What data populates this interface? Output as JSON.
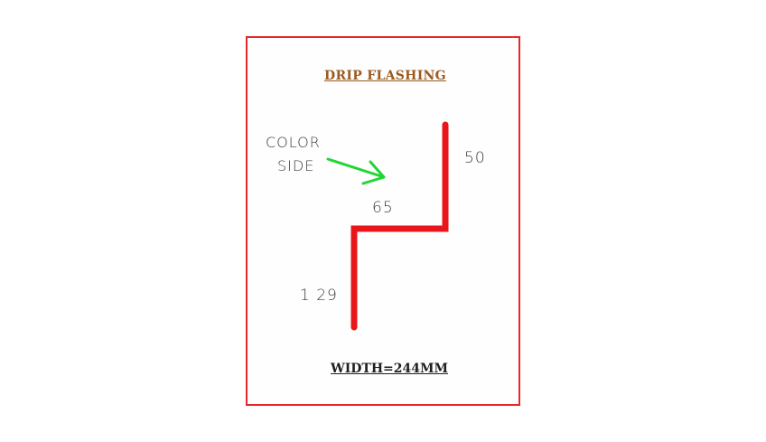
{
  "title": "DRIP  FLASHING",
  "color_side": {
    "line1": "COLOR",
    "line2": "SIDE"
  },
  "dimensions": {
    "top": "50",
    "middle": "65",
    "bottom": "1 29"
  },
  "width_label": "WIDTH=244MM",
  "colors": {
    "border": "#e8262b",
    "profile": "#e8161b",
    "arrow": "#22d633",
    "title": "#9c5a1e"
  }
}
